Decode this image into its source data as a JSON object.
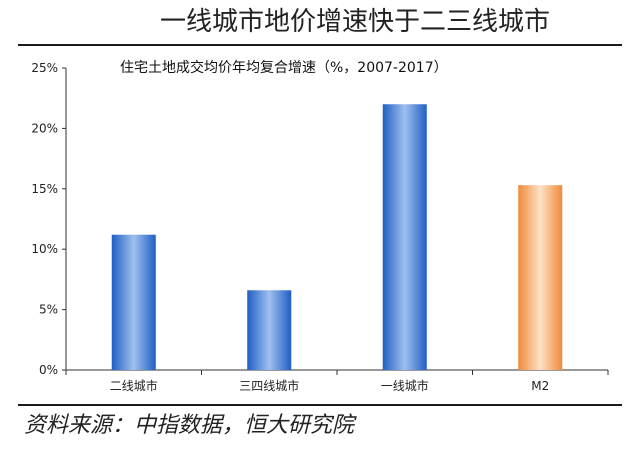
{
  "header": {
    "title": "一线城市地价增速快于二三线城市"
  },
  "footer": {
    "source": "资料来源：中指数据，恒大研究院"
  },
  "colors": {
    "blue_bar": "#2e6fd0",
    "orange_bar": "#f3a05a"
  },
  "chart_data": {
    "type": "bar",
    "title": "住宅土地成交均价年均复合增速（%，2007-2017）",
    "categories": [
      "二线城市",
      "三四线城市",
      "一线城市",
      "M2"
    ],
    "values": [
      11.2,
      6.6,
      22.0,
      15.3
    ],
    "bar_colors": [
      "blue",
      "blue",
      "blue",
      "orange"
    ],
    "ylim": [
      0,
      25
    ],
    "yticks": [
      "0%",
      "5%",
      "10%",
      "15%",
      "20%",
      "25%"
    ],
    "xlabel": "",
    "ylabel": "",
    "grid": false,
    "legend": false
  }
}
